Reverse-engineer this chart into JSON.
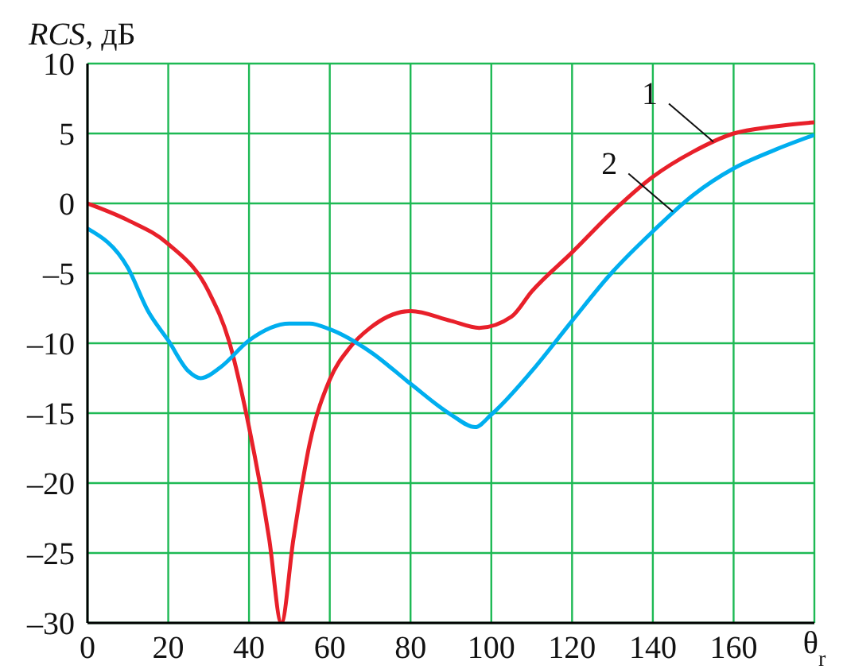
{
  "chart_data": {
    "type": "line",
    "ylabel": "RCS, дБ",
    "xlabel": "θ$_{r}$",
    "x": [
      0,
      10,
      20,
      30,
      35,
      40,
      45,
      48,
      51,
      55,
      60,
      65,
      70,
      80,
      90,
      97,
      105,
      110,
      120,
      130,
      140,
      150,
      160,
      170,
      180
    ],
    "series": [
      {
        "color": "#e8202a",
        "values": [
          0,
          -1.2,
          -2.9,
          -6.3,
          -9.8,
          -16,
          -24,
          -30,
          -24,
          -17.2,
          -12.6,
          -10.3,
          -8.9,
          -7.7,
          -8.4,
          -8.9,
          -8.1,
          -6.3,
          -3.5,
          -0.6,
          1.9,
          3.7,
          5.0,
          5.5,
          5.8
        ]
      },
      {
        "color": "#00aeef",
        "x": [
          0,
          10,
          15,
          20,
          25,
          28,
          33,
          40,
          50,
          55,
          60,
          70,
          80,
          90,
          96,
          100,
          110,
          120,
          130,
          140,
          150,
          160,
          170,
          180
        ],
        "values": [
          -1.8,
          -4.6,
          -7.7,
          -9.8,
          -12,
          -12.5,
          -11.7,
          -9.8,
          -8.6,
          -8.6,
          -9,
          -10.6,
          -12.9,
          -15.1,
          -16,
          -15.1,
          -12,
          -8.4,
          -4.9,
          -2,
          0.6,
          2.5,
          3.8,
          4.9
        ]
      }
    ],
    "annotations": [
      {
        "text": "1",
        "x": 155,
        "y": 4.4
      },
      {
        "text": "2",
        "x": 145,
        "y": -0.6
      }
    ],
    "xlim": [
      0,
      180
    ],
    "xticks": [
      0,
      20,
      40,
      60,
      80,
      100,
      120,
      140,
      160,
      {
        "value": 180,
        "label": null
      }
    ],
    "ylim": [
      -30,
      10
    ],
    "yticks": [
      {
        "value": -30,
        "label": "–30"
      },
      {
        "value": -25,
        "label": "–25"
      },
      {
        "value": -20,
        "label": "–20"
      },
      {
        "value": -15,
        "label": "–15"
      },
      {
        "value": -10,
        "label": "–10"
      },
      {
        "value": -5,
        "label": "–5"
      },
      0,
      5,
      10
    ],
    "grid": true,
    "legend": false,
    "marker": "none",
    "line_style": "solid"
  }
}
